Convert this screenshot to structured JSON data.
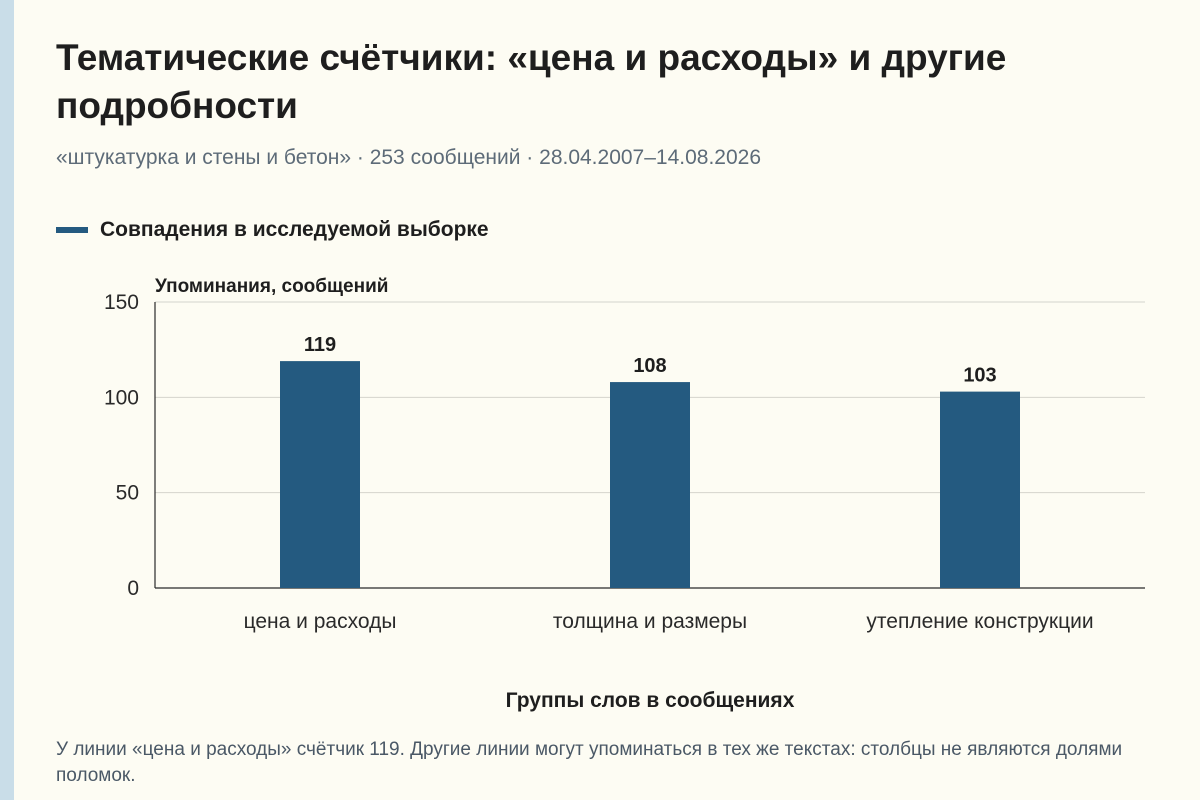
{
  "header": {
    "title": "Тематические счётчики: «цена и расходы» и другие подробности",
    "subtitle": "«штукатурка и стены и бетон» · 253 сообщений · 28.04.2007–14.08.2026"
  },
  "legend": {
    "label": "Совпадения в исследуемой выборке"
  },
  "footer": {
    "note": "У линии «цена и расходы» счётчик 119. Другие линии могут упоминаться в тех же текстах: столбцы не являются долями поломок."
  },
  "colors": {
    "bar": "#245a80",
    "grid": "#d4d4cc",
    "axis": "#2a2a2a",
    "background": "#fdfcf3"
  },
  "chart_data": {
    "type": "bar",
    "categories": [
      "цена и расходы",
      "толщина и размеры",
      "утепление конструкции"
    ],
    "series": [
      {
        "name": "Совпадения в исследуемой выборке",
        "values": [
          119,
          108,
          103
        ]
      }
    ],
    "ylabel": "Упоминания, сообщений",
    "xlabel": "Группы слов в сообщениях",
    "ylim": [
      0,
      150
    ],
    "yticks": [
      0,
      50,
      100,
      150
    ],
    "grid": true,
    "legend_position": "top-left"
  }
}
